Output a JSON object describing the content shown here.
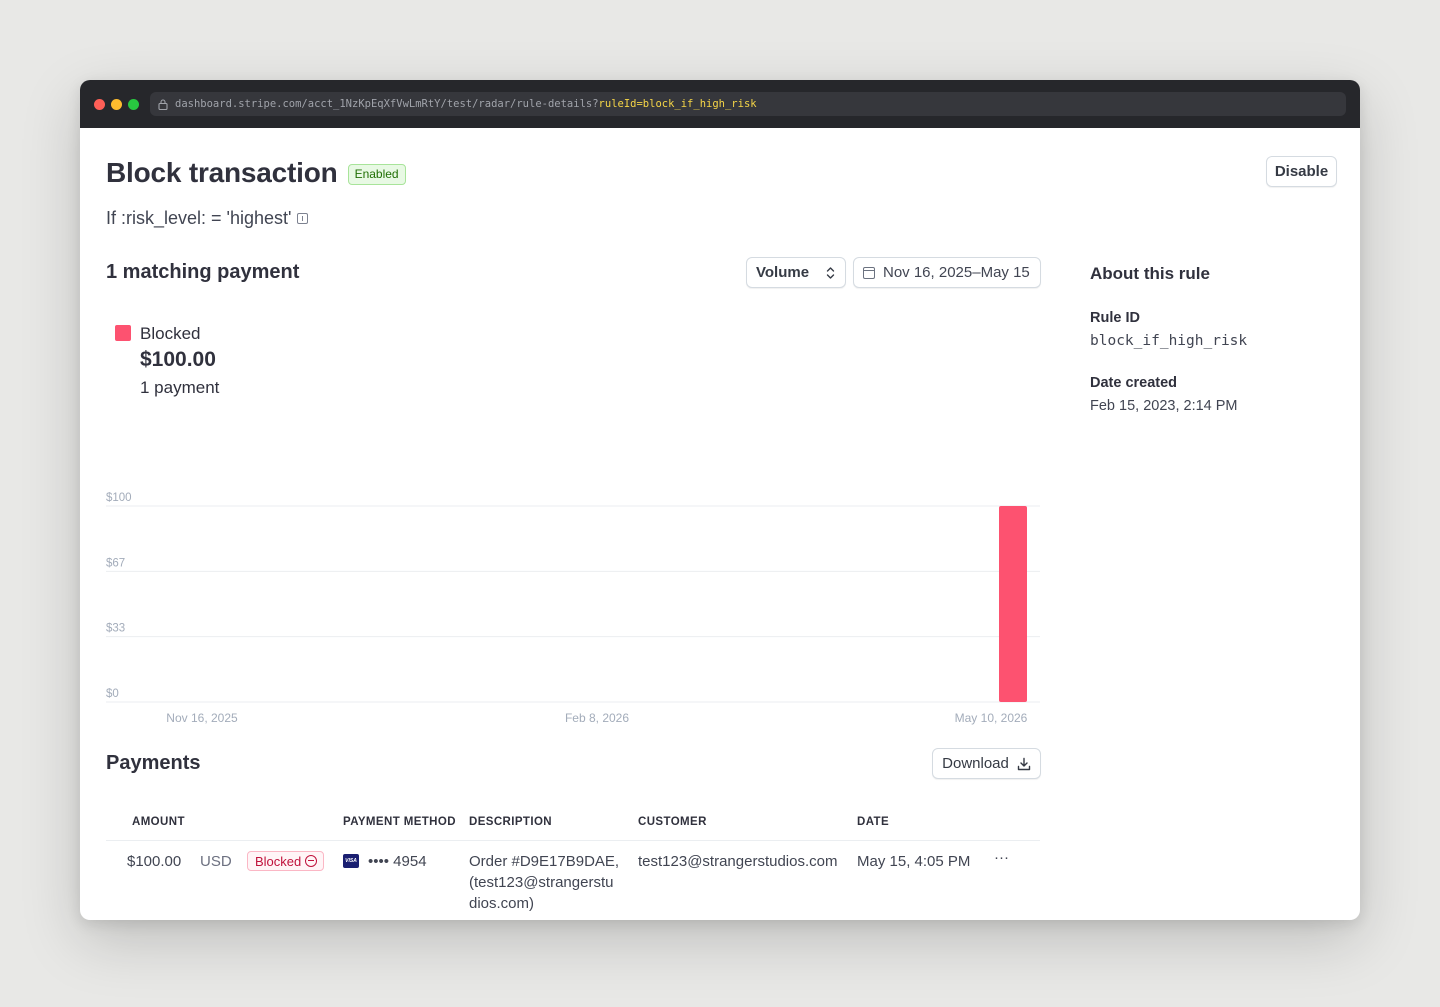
{
  "browser": {
    "url_prefix": "dashboard.stripe.com/acct_1NzKpEqXfVwLmRtY/test/radar/rule-details?",
    "url_highlight": "ruleId=block_if_high_risk"
  },
  "header": {
    "title": "Block transaction",
    "status_badge": "Enabled",
    "disable_button": "Disable",
    "condition": "If :risk_level: = 'highest'"
  },
  "summary": {
    "title": "1 matching payment",
    "metric_select": "Volume",
    "date_range": "Nov 16, 2025–May 15",
    "legend_label": "Blocked",
    "legend_amount": "$100.00",
    "legend_count": "1 payment"
  },
  "chart_data": {
    "type": "bar",
    "series": [
      {
        "name": "Blocked",
        "color": "#fd5270",
        "points": [
          {
            "x": "May 10, 2026",
            "y": 100
          }
        ]
      }
    ],
    "x_ticks": [
      "Nov 16, 2025",
      "Feb 8, 2026",
      "May 10, 2026"
    ],
    "y_ticks": [
      "$0",
      "$33",
      "$67",
      "$100"
    ],
    "ylim": [
      0,
      100
    ],
    "grid": true
  },
  "payments": {
    "title": "Payments",
    "download_button": "Download",
    "columns": {
      "amount": "AMOUNT",
      "payment_method": "PAYMENT METHOD",
      "description": "DESCRIPTION",
      "customer": "CUSTOMER",
      "date": "DATE"
    },
    "rows": [
      {
        "amount": "$100.00",
        "currency": "USD",
        "status": "Blocked",
        "card_brand": "VISA",
        "card_last4": "•••• 4954",
        "description_line1": "Order #D9E17B9DAE,",
        "description_line2": "(test123@strangerstu",
        "description_line3": "dios.com)",
        "customer": "test123@strangerstudios.com",
        "date": "May 15, 4:05 PM",
        "more": "···"
      }
    ]
  },
  "about": {
    "title": "About this rule",
    "rule_id_label": "Rule ID",
    "rule_id_value": "block_if_high_risk",
    "date_created_label": "Date created",
    "date_created_value": "Feb 15, 2023, 2:14 PM"
  },
  "colors": {
    "accent": "#fd5270",
    "enabled_badge": "#217005",
    "blocked_badge": "#c0123c"
  }
}
